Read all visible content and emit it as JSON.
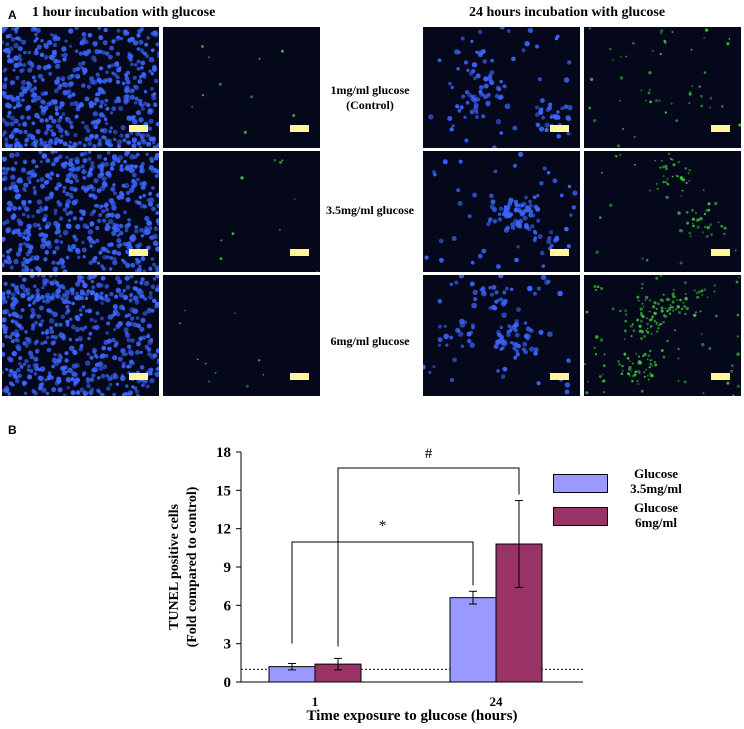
{
  "panel_a": {
    "letter": "A",
    "left_title": "1 hour incubation with glucose",
    "right_title": "24 hours incubation with glucose",
    "row_labels": [
      "1mg/ml glucose (Control)",
      "3.5mg/ml glucose",
      "6mg/ml glucose"
    ],
    "colors": {
      "blue_stain": "#3a66ff",
      "green_stain": "#3dd13d",
      "background": "#05081a",
      "scale_bar": "#fff59a"
    }
  },
  "panel_b": {
    "letter": "B"
  },
  "chart_data": {
    "type": "bar",
    "categories": [
      "1",
      "24"
    ],
    "series": [
      {
        "name": "Glucose 3.5mg/ml",
        "values": [
          1.2,
          6.6
        ],
        "errors": [
          0.25,
          0.5
        ],
        "color": "#9999ff"
      },
      {
        "name": "Glucose 6mg/ml",
        "values": [
          1.4,
          10.8
        ],
        "errors": [
          0.45,
          3.4
        ],
        "color": "#993366"
      }
    ],
    "xlabel": "Time exposure to glucose (hours)",
    "ylabel": "TUNEL positive cells",
    "ylabel2": "(Fold compared to control)",
    "ylim": [
      0,
      18
    ],
    "yticks": [
      0,
      3,
      6,
      9,
      12,
      15,
      18
    ],
    "reference_line": 1,
    "annotations": [
      "*",
      "#"
    ],
    "legend_position": "right"
  }
}
